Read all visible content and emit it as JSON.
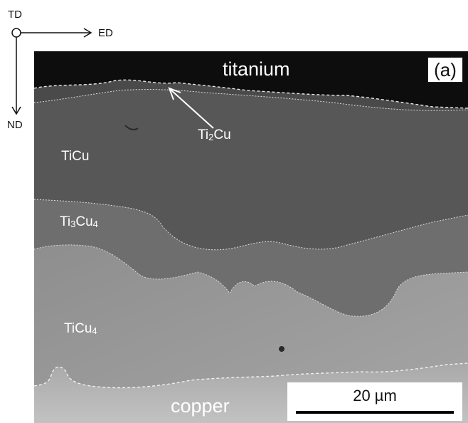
{
  "axes": {
    "td_label": "TD",
    "ed_label": "ED",
    "nd_label": "ND"
  },
  "panel_tag": "(a)",
  "phases": {
    "titanium": "titanium",
    "ti2cu": {
      "main": "Ti",
      "sub": "2",
      "rest": "Cu"
    },
    "ticu": "TiCu",
    "ti3cu4": {
      "main": "Ti",
      "sub": "3",
      "rest": "Cu",
      "sub2": "4"
    },
    "ticu4": {
      "main": "TiCu",
      "sub": "4"
    },
    "copper": "copper"
  },
  "scale_bar": {
    "label": "20 µm"
  },
  "colors": {
    "titanium": "#0d0d0d",
    "ti2cu": "#4a4a4a",
    "ticu": "#555555",
    "ti3cu4": "#6e6e6e",
    "ticu4": "#9c9c9c",
    "copper": "#b4b4b4"
  }
}
